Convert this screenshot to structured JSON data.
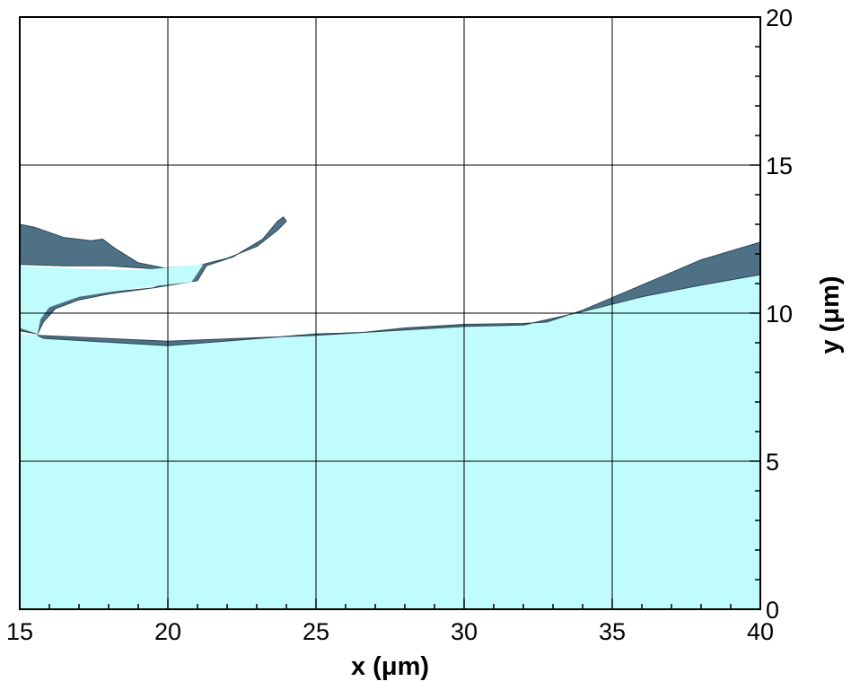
{
  "chart_data": {
    "type": "area",
    "title": "",
    "xlabel": "x (μm)",
    "ylabel": "y (μm)",
    "xlim": [
      15,
      40
    ],
    "ylim": [
      0,
      20
    ],
    "x_ticks": [
      "15",
      "20",
      "25",
      "30",
      "35",
      "40"
    ],
    "y_ticks": [
      "0",
      "5",
      "10",
      "15",
      "20"
    ],
    "y_axis_side": "right",
    "grid": true,
    "colors": {
      "liquid_fill": "#c0fcfc",
      "interface_surface": "#4e7186",
      "interface_edge": "#2b4556",
      "grid": "#000000",
      "frame": "#000000"
    },
    "series": [
      {
        "role": "liquid-bulk",
        "fill": "#c0fcfc",
        "points": [
          [
            15,
            9.3
          ],
          [
            15.8,
            9.25
          ],
          [
            20,
            9.05
          ],
          [
            25,
            9.25
          ],
          [
            26,
            9.35
          ],
          [
            30,
            9.55
          ],
          [
            32,
            9.6
          ],
          [
            34,
            10.05
          ],
          [
            36,
            10.55
          ],
          [
            38,
            10.95
          ],
          [
            40,
            11.3
          ],
          [
            40,
            0
          ],
          [
            15,
            0
          ]
        ]
      },
      {
        "role": "wavy-interface-band",
        "fill": "#4e7186",
        "points": [
          [
            15.6,
            9.25
          ],
          [
            20,
            9.05
          ],
          [
            25,
            9.25
          ],
          [
            26.6,
            9.35
          ],
          [
            25,
            9.3
          ],
          [
            20,
            8.9
          ],
          [
            15.8,
            9.15
          ]
        ]
      },
      {
        "role": "right-rising-surface",
        "fill": "#4e7186",
        "points": [
          [
            26.6,
            9.35
          ],
          [
            30,
            9.55
          ],
          [
            32,
            9.6
          ],
          [
            34,
            10.05
          ],
          [
            36,
            10.55
          ],
          [
            38,
            10.95
          ],
          [
            40,
            11.3
          ],
          [
            40,
            12.4
          ],
          [
            38,
            11.8
          ],
          [
            36,
            10.95
          ],
          [
            34,
            10.1
          ],
          [
            32.8,
            9.7
          ],
          [
            32,
            9.65
          ],
          [
            30,
            9.62
          ],
          [
            28,
            9.5
          ]
        ]
      },
      {
        "role": "upper-sheet-surface",
        "fill": "#4e7186",
        "points": [
          [
            15,
            13
          ],
          [
            15.5,
            12.9
          ],
          [
            16.5,
            12.55
          ],
          [
            17.4,
            12.45
          ],
          [
            17.8,
            12.5
          ],
          [
            18.2,
            12.2
          ],
          [
            19,
            11.7
          ],
          [
            20,
            11.5
          ],
          [
            21,
            11.6
          ],
          [
            22,
            11.85
          ],
          [
            23,
            12.25
          ],
          [
            23.7,
            12.8
          ],
          [
            24,
            13.1
          ],
          [
            23.9,
            13.25
          ],
          [
            23.7,
            13.1
          ],
          [
            23.2,
            12.5
          ],
          [
            22.2,
            11.9
          ],
          [
            21.3,
            11.6
          ],
          [
            21,
            11.1
          ],
          [
            19.5,
            10.85
          ],
          [
            18,
            10.65
          ],
          [
            17,
            10.45
          ],
          [
            16.2,
            10.15
          ],
          [
            15.8,
            9.7
          ],
          [
            15.6,
            9.3
          ],
          [
            15,
            9.4
          ],
          [
            15,
            10
          ],
          [
            15.9,
            10.3
          ],
          [
            16.8,
            10.55
          ],
          [
            18,
            10.7
          ],
          [
            19.5,
            10.85
          ],
          [
            20.5,
            11.2
          ],
          [
            21,
            11.6
          ],
          [
            19.5,
            11.5
          ],
          [
            18,
            11.6
          ],
          [
            16.5,
            11.6
          ],
          [
            15,
            11.65
          ]
        ]
      },
      {
        "role": "upper-sheet-liquid",
        "fill": "#c0fcfc",
        "points": [
          [
            15,
            11.6
          ],
          [
            17,
            11.5
          ],
          [
            19,
            11.45
          ],
          [
            21.2,
            11.65
          ],
          [
            20.8,
            11.05
          ],
          [
            19,
            10.85
          ],
          [
            17,
            10.55
          ],
          [
            16,
            10.2
          ],
          [
            15.7,
            9.8
          ],
          [
            15.6,
            9.3
          ],
          [
            15,
            9.5
          ]
        ]
      }
    ]
  }
}
